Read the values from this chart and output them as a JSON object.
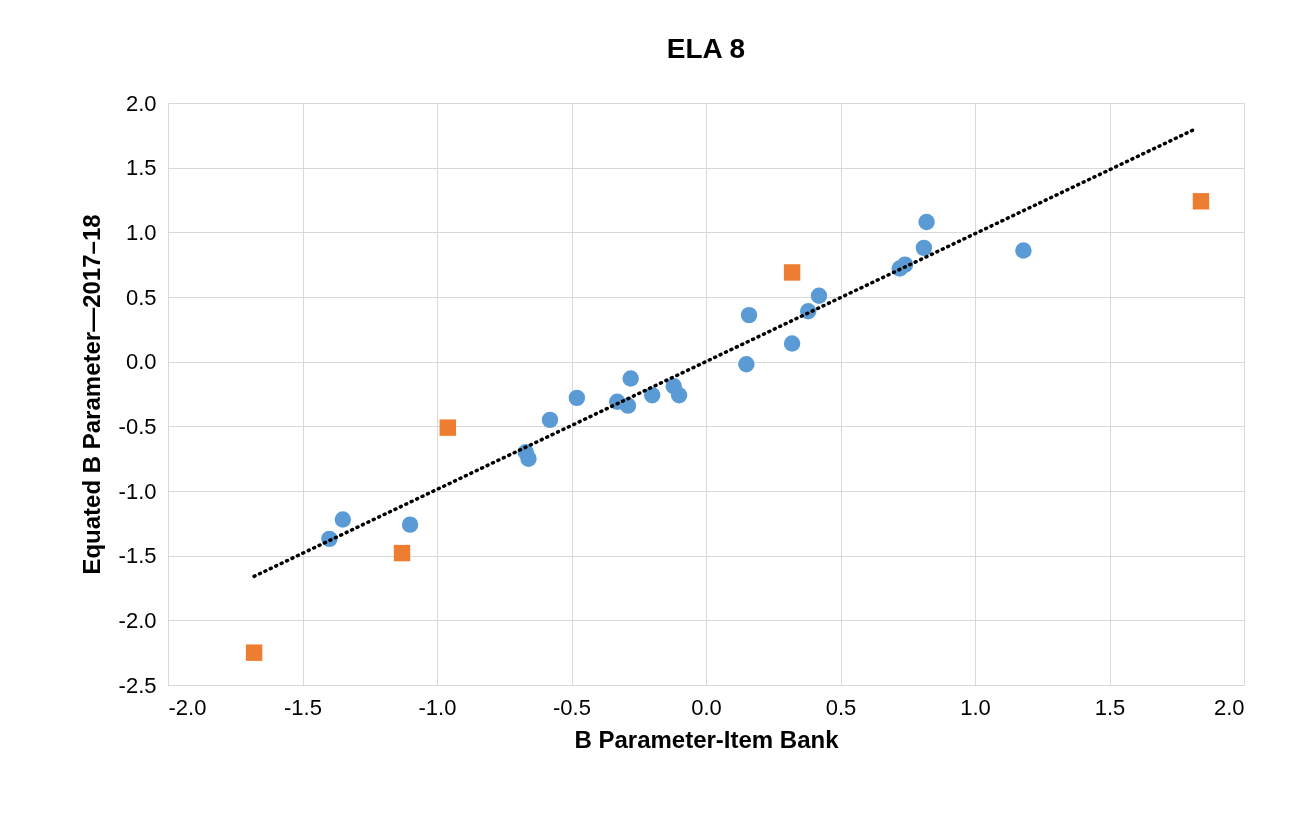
{
  "chart_data": {
    "type": "scatter",
    "title": "ELA 8",
    "xlabel": "B Parameter-Item Bank",
    "ylabel": "Equated B Parameter—2017–18",
    "xlim": [
      -2,
      2
    ],
    "xticks": [
      {
        "value": -2,
        "label": "-2.0"
      },
      -1.5,
      {
        "value": -1,
        "label": "-1.0"
      },
      -0.5,
      {
        "value": 0,
        "label": "0.0"
      },
      0.5,
      {
        "value": 1,
        "label": "1.0"
      },
      1.5,
      {
        "value": 2,
        "label": "2.0"
      }
    ],
    "ylim": [
      -2.5,
      2
    ],
    "yticks": [
      -2.5,
      {
        "value": -2,
        "label": "-2.0"
      },
      -1.5,
      {
        "value": -1,
        "label": "-1.0"
      },
      -0.5,
      {
        "value": 0,
        "label": "0.0"
      },
      0.5,
      {
        "value": 1,
        "label": "1.0"
      },
      1.5,
      {
        "value": 2,
        "label": "2.0"
      }
    ],
    "grid": true,
    "series": [
      {
        "type": "scatter",
        "marker": "circle",
        "color": "#5b9bd5",
        "x": [
          -1.4,
          -1.35,
          -1.1,
          -0.67,
          -0.66,
          -0.58,
          -0.48,
          -0.33,
          -0.29,
          -0.28,
          -0.2,
          -0.12,
          -0.1,
          0.15,
          0.16,
          0.32,
          0.38,
          0.42,
          0.72,
          0.74,
          0.81,
          0.82,
          1.18
        ],
        "values": [
          -1.37,
          -1.22,
          -1.26,
          -0.7,
          -0.75,
          -0.45,
          -0.28,
          -0.31,
          -0.34,
          -0.13,
          -0.26,
          -0.19,
          -0.26,
          -0.02,
          0.36,
          0.14,
          0.39,
          0.51,
          0.72,
          0.75,
          0.88,
          1.08,
          0.86
        ]
      },
      {
        "type": "scatter",
        "marker": "square",
        "color": "#ed7d31",
        "x": [
          -1.68,
          -1.13,
          -0.96,
          0.32,
          1.84
        ],
        "values": [
          -2.25,
          -1.48,
          -0.51,
          0.69,
          1.24
        ]
      },
      {
        "type": "line",
        "line_style": "dotted",
        "color": "#000000",
        "x": [
          -1.68,
          1.82
        ],
        "values": [
          -1.66,
          1.8
        ]
      }
    ]
  }
}
